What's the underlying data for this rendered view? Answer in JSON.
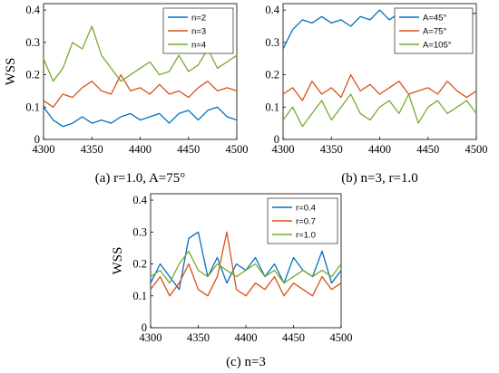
{
  "colors": {
    "blue": "#0072BD",
    "orange": "#D95319",
    "green": "#77AC30"
  },
  "chart_data": [
    {
      "type": "line",
      "caption": "(a) r=1.0, A=75°",
      "ylabel": "WSS",
      "xlabel": "",
      "xlim": [
        4300,
        4500
      ],
      "ylim": [
        0,
        0.42
      ],
      "xticks": [
        4300,
        4350,
        4400,
        4450,
        4500
      ],
      "yticks": [
        0,
        0.1,
        0.2,
        0.3,
        0.4
      ],
      "legend_position": "top-right",
      "x": [
        4300,
        4310,
        4320,
        4330,
        4340,
        4350,
        4360,
        4370,
        4380,
        4390,
        4400,
        4410,
        4420,
        4430,
        4440,
        4450,
        4460,
        4470,
        4480,
        4490,
        4500
      ],
      "series": [
        {
          "name": "n=2",
          "color": "#0072BD",
          "values": [
            0.1,
            0.06,
            0.04,
            0.05,
            0.07,
            0.05,
            0.06,
            0.05,
            0.07,
            0.08,
            0.06,
            0.07,
            0.08,
            0.05,
            0.08,
            0.09,
            0.06,
            0.09,
            0.1,
            0.07,
            0.06
          ]
        },
        {
          "name": "n=3",
          "color": "#D95319",
          "values": [
            0.12,
            0.1,
            0.14,
            0.13,
            0.16,
            0.18,
            0.15,
            0.14,
            0.2,
            0.15,
            0.16,
            0.14,
            0.17,
            0.14,
            0.15,
            0.13,
            0.16,
            0.18,
            0.15,
            0.16,
            0.15
          ]
        },
        {
          "name": "n=4",
          "color": "#77AC30",
          "values": [
            0.25,
            0.18,
            0.22,
            0.3,
            0.28,
            0.35,
            0.26,
            0.22,
            0.18,
            0.2,
            0.22,
            0.24,
            0.2,
            0.21,
            0.26,
            0.21,
            0.23,
            0.28,
            0.22,
            0.24,
            0.26
          ]
        }
      ]
    },
    {
      "type": "line",
      "caption": "(b) n=3, r=1.0",
      "ylabel": "",
      "xlabel": "",
      "xlim": [
        4300,
        4500
      ],
      "ylim": [
        0,
        0.42
      ],
      "xticks": [
        4300,
        4350,
        4400,
        4450,
        4500
      ],
      "yticks": [
        0,
        0.1,
        0.2,
        0.3,
        0.4
      ],
      "legend_position": "top-right",
      "x": [
        4300,
        4310,
        4320,
        4330,
        4340,
        4350,
        4360,
        4370,
        4380,
        4390,
        4400,
        4410,
        4420,
        4430,
        4440,
        4450,
        4460,
        4470,
        4480,
        4490,
        4500
      ],
      "series": [
        {
          "name": "A=45°",
          "color": "#0072BD",
          "values": [
            0.28,
            0.34,
            0.37,
            0.36,
            0.38,
            0.36,
            0.37,
            0.35,
            0.38,
            0.37,
            0.4,
            0.37,
            0.39,
            0.38,
            0.37,
            0.38,
            0.39,
            0.38,
            0.4,
            0.39,
            0.39
          ]
        },
        {
          "name": "A=75°",
          "color": "#D95319",
          "values": [
            0.14,
            0.16,
            0.12,
            0.18,
            0.14,
            0.16,
            0.13,
            0.2,
            0.15,
            0.17,
            0.14,
            0.16,
            0.18,
            0.14,
            0.15,
            0.16,
            0.14,
            0.18,
            0.15,
            0.13,
            0.15
          ]
        },
        {
          "name": "A=105°",
          "color": "#77AC30",
          "values": [
            0.06,
            0.1,
            0.04,
            0.08,
            0.12,
            0.06,
            0.1,
            0.14,
            0.08,
            0.06,
            0.1,
            0.12,
            0.08,
            0.14,
            0.05,
            0.1,
            0.12,
            0.08,
            0.1,
            0.12,
            0.08
          ]
        }
      ]
    },
    {
      "type": "line",
      "caption": "(c) n=3",
      "ylabel": "WSS",
      "xlabel": "",
      "xlim": [
        4300,
        4500
      ],
      "ylim": [
        0,
        0.42
      ],
      "xticks": [
        4300,
        4350,
        4400,
        4450,
        4500
      ],
      "yticks": [
        0,
        0.1,
        0.2,
        0.3,
        0.4
      ],
      "legend_position": "top-right",
      "x": [
        4300,
        4310,
        4320,
        4330,
        4340,
        4350,
        4360,
        4370,
        4380,
        4390,
        4400,
        4410,
        4420,
        4430,
        4440,
        4450,
        4460,
        4470,
        4480,
        4490,
        4500
      ],
      "series": [
        {
          "name": "r=0.4",
          "color": "#0072BD",
          "values": [
            0.14,
            0.2,
            0.16,
            0.12,
            0.28,
            0.3,
            0.16,
            0.22,
            0.14,
            0.2,
            0.18,
            0.22,
            0.16,
            0.2,
            0.14,
            0.22,
            0.18,
            0.16,
            0.24,
            0.14,
            0.18
          ]
        },
        {
          "name": "r=0.7",
          "color": "#D95319",
          "values": [
            0.12,
            0.16,
            0.1,
            0.14,
            0.2,
            0.12,
            0.1,
            0.16,
            0.3,
            0.12,
            0.1,
            0.14,
            0.12,
            0.16,
            0.1,
            0.14,
            0.12,
            0.1,
            0.16,
            0.12,
            0.14
          ]
        },
        {
          "name": "r=1.0",
          "color": "#77AC30",
          "values": [
            0.16,
            0.18,
            0.14,
            0.2,
            0.24,
            0.18,
            0.16,
            0.2,
            0.18,
            0.16,
            0.18,
            0.2,
            0.16,
            0.18,
            0.14,
            0.16,
            0.18,
            0.16,
            0.18,
            0.16,
            0.2
          ]
        }
      ]
    }
  ]
}
